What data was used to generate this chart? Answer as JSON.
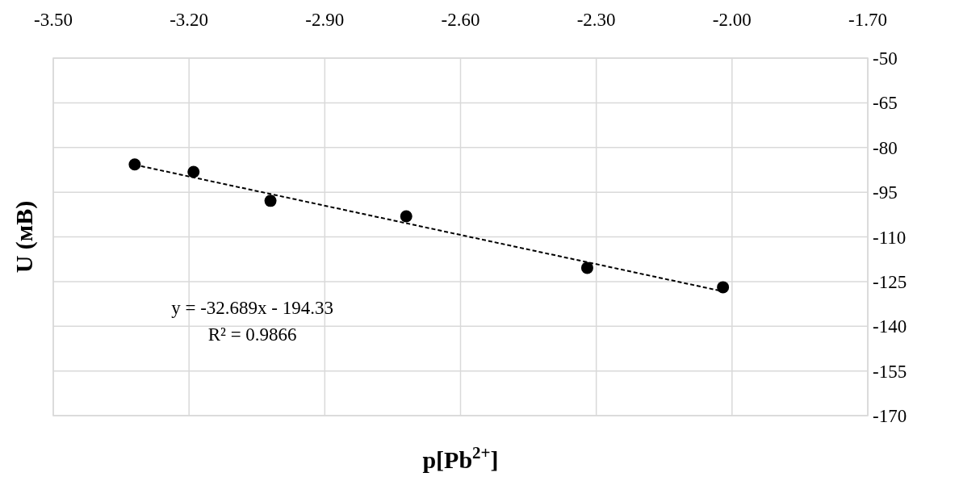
{
  "chart_data": {
    "type": "scatter",
    "xlabel": "p[Pb$^{2+}$]",
    "ylabel": "U (мВ)",
    "xlim": [
      -3.5,
      -1.7
    ],
    "xticks": [
      {
        "value": -3.5,
        "label": "-3.50"
      },
      {
        "value": -3.2,
        "label": "-3.20"
      },
      {
        "value": -2.9,
        "label": "-2.90"
      },
      {
        "value": -2.6,
        "label": "-2.60"
      },
      {
        "value": -2.3,
        "label": "-2.30"
      },
      {
        "value": -2.0,
        "label": "-2.00"
      },
      {
        "value": -1.7,
        "label": "-1.70"
      }
    ],
    "ylim": [
      -170,
      -50
    ],
    "yticks": [
      -50,
      -65,
      -80,
      -95,
      -110,
      -125,
      -140,
      -155,
      -170
    ],
    "grid": true,
    "series": [
      {
        "color": "#000000",
        "marker": "circle",
        "x": [
          -3.32,
          -3.19,
          -3.02,
          -2.72,
          -2.32,
          -2.02
        ],
        "values": [
          -85.7,
          -88.2,
          -97.9,
          -103.1,
          -120.4,
          -126.9
        ]
      },
      {
        "type": "line",
        "color": "#000000",
        "line_style": "dashed",
        "x": [
          -3.32,
          -2.02
        ],
        "values": [
          -85.8,
          -128.3
        ]
      }
    ],
    "annotations": [
      "y = -32.689x - 194.33",
      "R² = 0.9866"
    ]
  }
}
